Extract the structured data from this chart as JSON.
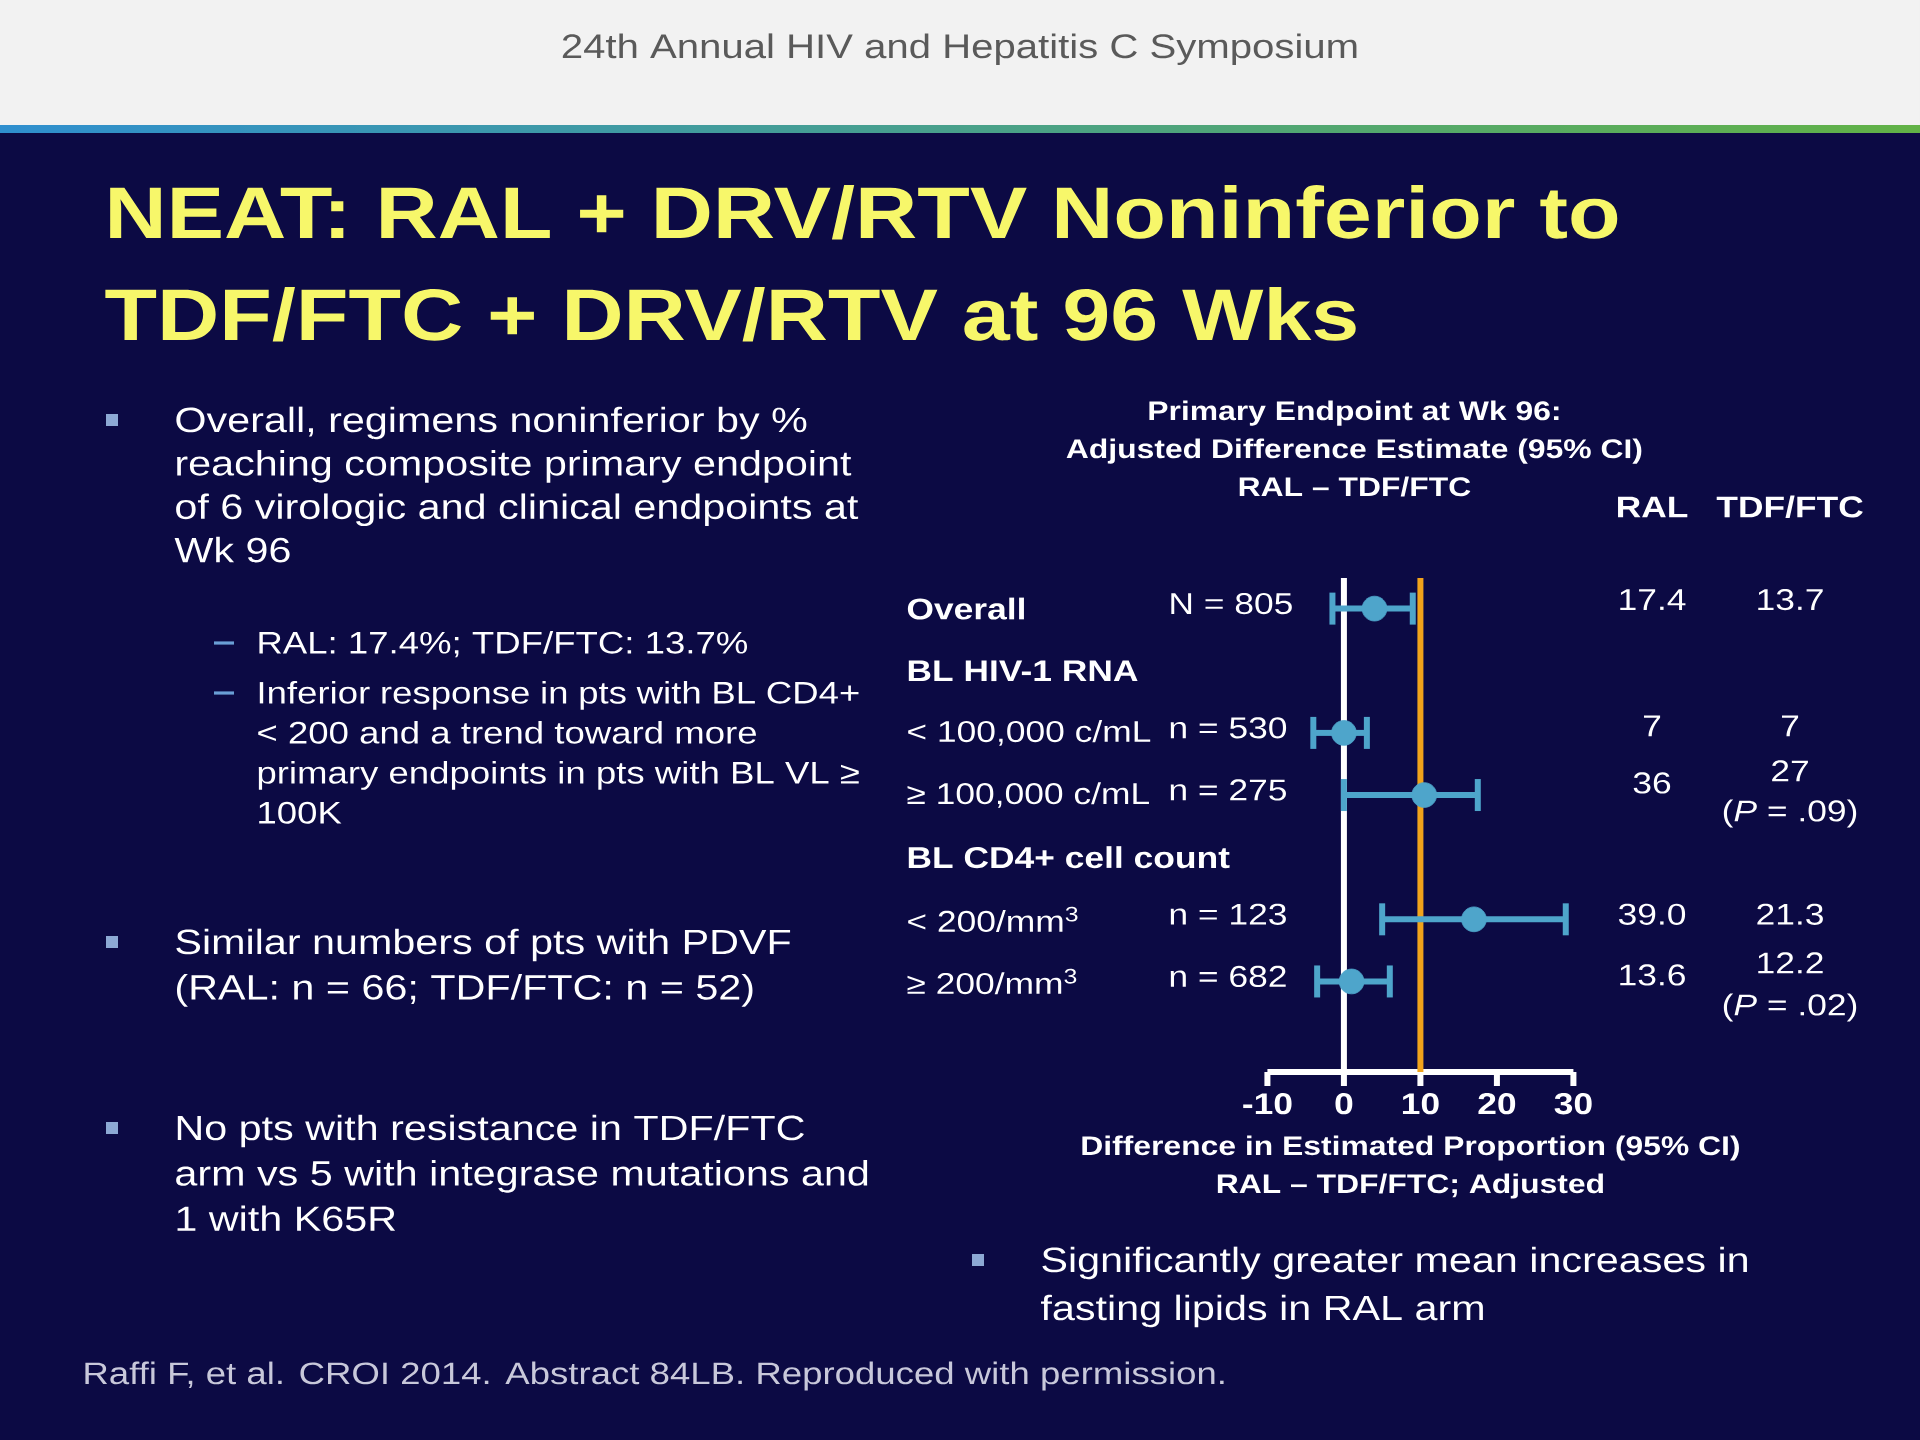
{
  "chart_data": [
    {
      "type": "other",
      "title": "NEAT: RAL + DRV/RTV Noninferior to TDF/FTC + DRV/RTV at 96 Wks",
      "annotations": [
        "24th Annual HIV and Hepatitis C Symposium",
        "Overall, regimens noninferior by % reaching composite primary endpoint of 6 virologic and clinical endpoints at Wk 96",
        "RAL: 17.4%; TDF/FTC: 13.7%",
        "Inferior response in pts with BL CD4+ < 200 and a trend toward more primary endpoints in pts with BL VL ≥ 100K",
        "Similar numbers of pts with PDVF (RAL: n = 66; TDF/FTC: n = 52)",
        "No pts with resistance in TDF/FTC arm vs 5 with integrase mutations and 1 with K65R",
        "Significantly greater mean increases in fasting lipids in RAL arm",
        "Raffi F, et al. CROI 2014. Abstract 84LB. Reproduced with permission."
      ]
    },
    {
      "type": "scatter",
      "orientation": "horizontal",
      "title": "Primary Endpoint at Wk 96:",
      "subtitle": "Adjusted Difference Estimate (95% CI) RAL – TDF/FTC",
      "xlabel": "Difference in Estimated Proportion (95% CI) RAL – TDF/FTC; Adjusted",
      "categories": [
        "Overall",
        "BL HIV-1 RNA",
        "< 100,000 c/mL",
        "≥ 100,000 c/mL",
        "BL CD4+ cell count",
        "< 200/mm$^{3}$",
        "≥ 200/mm$^{3}$"
      ],
      "values": [
        4,
        null,
        0,
        10.5,
        null,
        17,
        1
      ],
      "errors": [
        [
          -1.5,
          9
        ],
        null,
        [
          -4,
          3
        ],
        [
          0,
          17.5
        ],
        null,
        [
          5,
          29
        ],
        [
          -3.5,
          6
        ]
      ],
      "color": "#4ea5cb",
      "marker": "circle",
      "xlim": [
        -10,
        30
      ],
      "xticks": [
        -10,
        0,
        10,
        20,
        30
      ],
      "ref_lines": [
        {
          "axis": "x",
          "value": 0,
          "color": "#ffffff"
        },
        {
          "axis": "x",
          "value": 10,
          "color": "#f2a31b"
        }
      ],
      "annotations": [
        "N = 805",
        "n = 530",
        "n = 275",
        "n = 123",
        "n = 682",
        "RAL",
        "TDF/FTC",
        "17.4",
        "13.7",
        "7",
        "7",
        "36",
        "27",
        "(*P* = .09)",
        "39.0",
        "21.3",
        "13.6",
        "12.2",
        "(*P* = .02)"
      ]
    }
  ]
}
